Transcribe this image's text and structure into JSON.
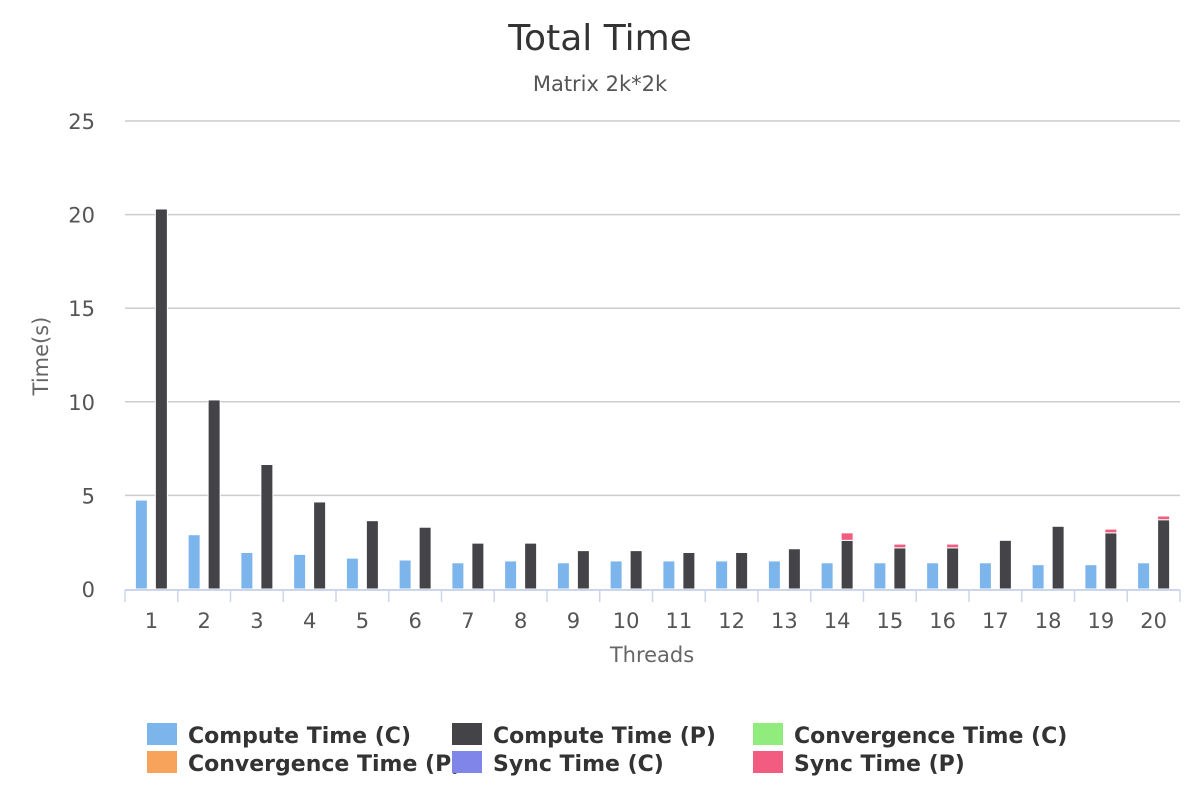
{
  "chart_data": {
    "type": "bar",
    "stacked": true,
    "title": "Total Time",
    "subtitle": "Matrix 2k*2k",
    "xlabel": "Threads",
    "ylabel": "Time(s)",
    "ylim": [
      0,
      25
    ],
    "yticks": [
      0,
      5,
      10,
      15,
      20,
      25
    ],
    "grid": true,
    "legend_position": "bottom",
    "categories": [
      "1",
      "2",
      "3",
      "4",
      "5",
      "6",
      "7",
      "8",
      "9",
      "10",
      "11",
      "12",
      "13",
      "14",
      "15",
      "16",
      "17",
      "18",
      "19",
      "20"
    ],
    "series": [
      {
        "name": "Compute Time (C)",
        "stack": "C",
        "color": "#7cb5ec",
        "values": [
          4.75,
          2.9,
          1.95,
          1.85,
          1.65,
          1.55,
          1.4,
          1.5,
          1.4,
          1.5,
          1.5,
          1.5,
          1.5,
          1.4,
          1.4,
          1.4,
          1.4,
          1.3,
          1.3,
          1.4
        ]
      },
      {
        "name": "Compute Time (P)",
        "stack": "P",
        "color": "#434348",
        "values": [
          20.3,
          10.1,
          6.65,
          4.65,
          3.65,
          3.3,
          2.45,
          2.45,
          2.05,
          2.05,
          1.95,
          1.95,
          2.15,
          2.6,
          2.2,
          2.2,
          2.6,
          3.35,
          3.0,
          3.7
        ]
      },
      {
        "name": "Convergence Time (C)",
        "stack": "C",
        "color": "#90ed7d",
        "values": [
          0,
          0,
          0,
          0,
          0,
          0,
          0,
          0,
          0,
          0,
          0,
          0,
          0,
          0,
          0,
          0,
          0,
          0,
          0,
          0
        ]
      },
      {
        "name": "Convergence Time (P)",
        "stack": "P",
        "color": "#f7a35c",
        "values": [
          0,
          0,
          0,
          0,
          0,
          0,
          0,
          0,
          0,
          0,
          0,
          0,
          0,
          0,
          0,
          0,
          0,
          0,
          0,
          0
        ]
      },
      {
        "name": "Sync Time (C)",
        "stack": "C",
        "color": "#8085e9",
        "values": [
          0,
          0,
          0,
          0,
          0,
          0,
          0,
          0,
          0,
          0,
          0,
          0,
          0,
          0,
          0,
          0,
          0,
          0,
          0,
          0
        ]
      },
      {
        "name": "Sync Time (P)",
        "stack": "P",
        "color": "#f15c80",
        "values": [
          0,
          0,
          0,
          0,
          0,
          0,
          0,
          0,
          0,
          0,
          0,
          0,
          0,
          0.4,
          0.2,
          0.2,
          0,
          0,
          0.2,
          0.2
        ]
      }
    ]
  }
}
